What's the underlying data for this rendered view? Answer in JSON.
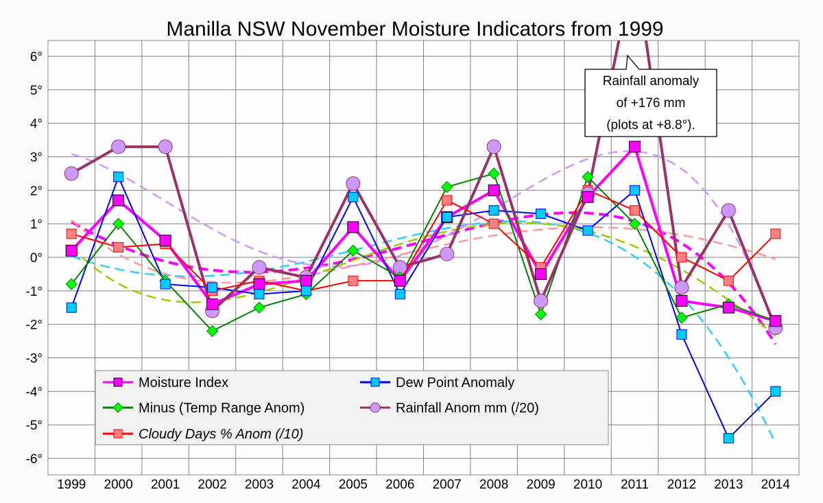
{
  "chart_data": {
    "type": "line",
    "title": "Manilla NSW November Moisture Indicators from 1999",
    "xlabel": "",
    "ylabel": "",
    "categories": [
      "1999",
      "2000",
      "2001",
      "2002",
      "2003",
      "2004",
      "2005",
      "2006",
      "2007",
      "2008",
      "2009",
      "2010",
      "2011",
      "2012",
      "2013",
      "2014"
    ],
    "ylim": [
      -6,
      6
    ],
    "yticks": [
      "-6°",
      "-5°",
      "-4°",
      "-3°",
      "-2°",
      "-1°",
      "0°",
      "1°",
      "2°",
      "3°",
      "4°",
      "5°",
      "6°"
    ],
    "grid": true,
    "trendlines": true,
    "legend_position": "bottom-left",
    "series": [
      {
        "name": "Moisture Index",
        "color": "#ff00ff",
        "marker": "square",
        "fill": "#ff00ff",
        "values": [
          0.2,
          1.7,
          0.5,
          -1.4,
          -0.8,
          -0.7,
          0.9,
          -0.7,
          1.2,
          2.0,
          -0.5,
          1.8,
          3.3,
          -1.3,
          -1.5,
          -1.9
        ]
      },
      {
        "name": "Dew Point Anomaly",
        "color": "#0000ff",
        "marker": "square",
        "fill": "#00ccff",
        "values": [
          -1.5,
          2.4,
          -0.8,
          -0.9,
          -1.1,
          -1.0,
          1.8,
          -1.1,
          1.2,
          1.4,
          1.3,
          0.8,
          2.0,
          -2.3,
          -5.4,
          -4.0
        ]
      },
      {
        "name": "Minus (Temp Range Anom)",
        "color": "#008000",
        "marker": "diamond",
        "fill": "#00ff00",
        "values": [
          -0.8,
          1.0,
          -0.7,
          -2.2,
          -1.5,
          -1.1,
          0.2,
          -0.6,
          2.1,
          2.5,
          -1.7,
          2.4,
          1.0,
          -1.8,
          -1.4,
          -1.9
        ]
      },
      {
        "name": "Rainfall Anom mm (/20)",
        "color": "#993366",
        "marker": "circle",
        "fill": "#cc99ff",
        "values": [
          2.5,
          3.3,
          3.3,
          -1.6,
          -0.3,
          -0.6,
          2.2,
          -0.3,
          0.1,
          3.3,
          -1.3,
          1.9,
          8.8,
          -0.9,
          1.4,
          -2.1
        ]
      },
      {
        "name": "Cloudy Days % Anom (/10)",
        "color": "#ff0000",
        "marker": "square",
        "fill": "#ff8080",
        "values": [
          0.7,
          0.3,
          0.4,
          -1.0,
          -0.7,
          -1.0,
          -0.7,
          -0.7,
          1.7,
          1.0,
          -0.3,
          2.0,
          1.4,
          0.0,
          -0.7,
          0.7
        ]
      }
    ],
    "trend_colors": [
      "#ff00ff",
      "#33ccff",
      "#99cc00",
      "#cc99ff",
      "#ff9999"
    ],
    "annotation": {
      "lines": [
        "Rainfall anomaly",
        "of +176 mm",
        "(plots at +8.8°)."
      ]
    }
  }
}
